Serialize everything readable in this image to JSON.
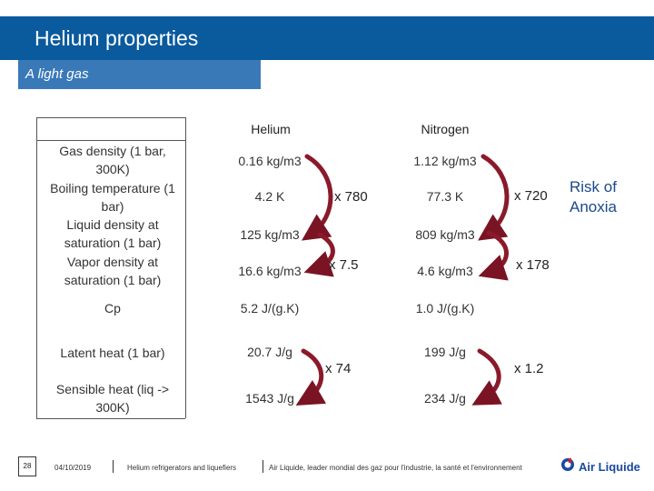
{
  "slide": {
    "title": "Helium properties",
    "subtitle": "A light gas"
  },
  "table": {
    "headers": {
      "helium": "Helium",
      "nitrogen": "Nitrogen"
    },
    "rows": [
      {
        "label": "Gas density (1 bar, 300K)",
        "helium": "0.16 kg/m3",
        "nitrogen": "1.12 kg/m3"
      },
      {
        "label": "Boiling temperature (1 bar)",
        "helium": "4.2 K",
        "nitrogen": "77.3 K"
      },
      {
        "label": "Liquid density at saturation (1 bar)",
        "helium": "125 kg/m3",
        "nitrogen": "809 kg/m3"
      },
      {
        "label": "Vapor density at saturation (1 bar)",
        "helium": "16.6 kg/m3",
        "nitrogen": "4.6 kg/m3"
      },
      {
        "label": "Cp",
        "helium": "5.2 J/(g.K)",
        "nitrogen": "1.0 J/(g.K)"
      },
      {
        "label": "Latent heat (1 bar)",
        "helium": "20.7 J/g",
        "nitrogen": "199 J/g"
      },
      {
        "label": "Sensible heat (liq -> 300K)",
        "helium": "1543 J/g",
        "nitrogen": "234 J/g"
      }
    ]
  },
  "ratios": {
    "he_density": "x 780",
    "he_vapor": "x 7.5",
    "he_heat": "x 74",
    "n2_density": "x 720",
    "n2_vapor": "x 178",
    "n2_heat": "x 1.2"
  },
  "risk_note": {
    "line1": "Risk of",
    "line2": "Anoxia"
  },
  "footer": {
    "page": "28",
    "date": "04/10/2019",
    "course": "Helium refrigerators and liquefiers",
    "tagline": "Air Liquide, leader mondial des gaz pour l'industrie, la santé et l'environnement",
    "logo": "Air Liquide"
  },
  "colors": {
    "title_bar": "#0a5a9e",
    "subtitle_bar": "#3a79b8",
    "arrow": "#8a1a2a"
  },
  "icons": {
    "logo": "air-liquide-logo-icon"
  }
}
